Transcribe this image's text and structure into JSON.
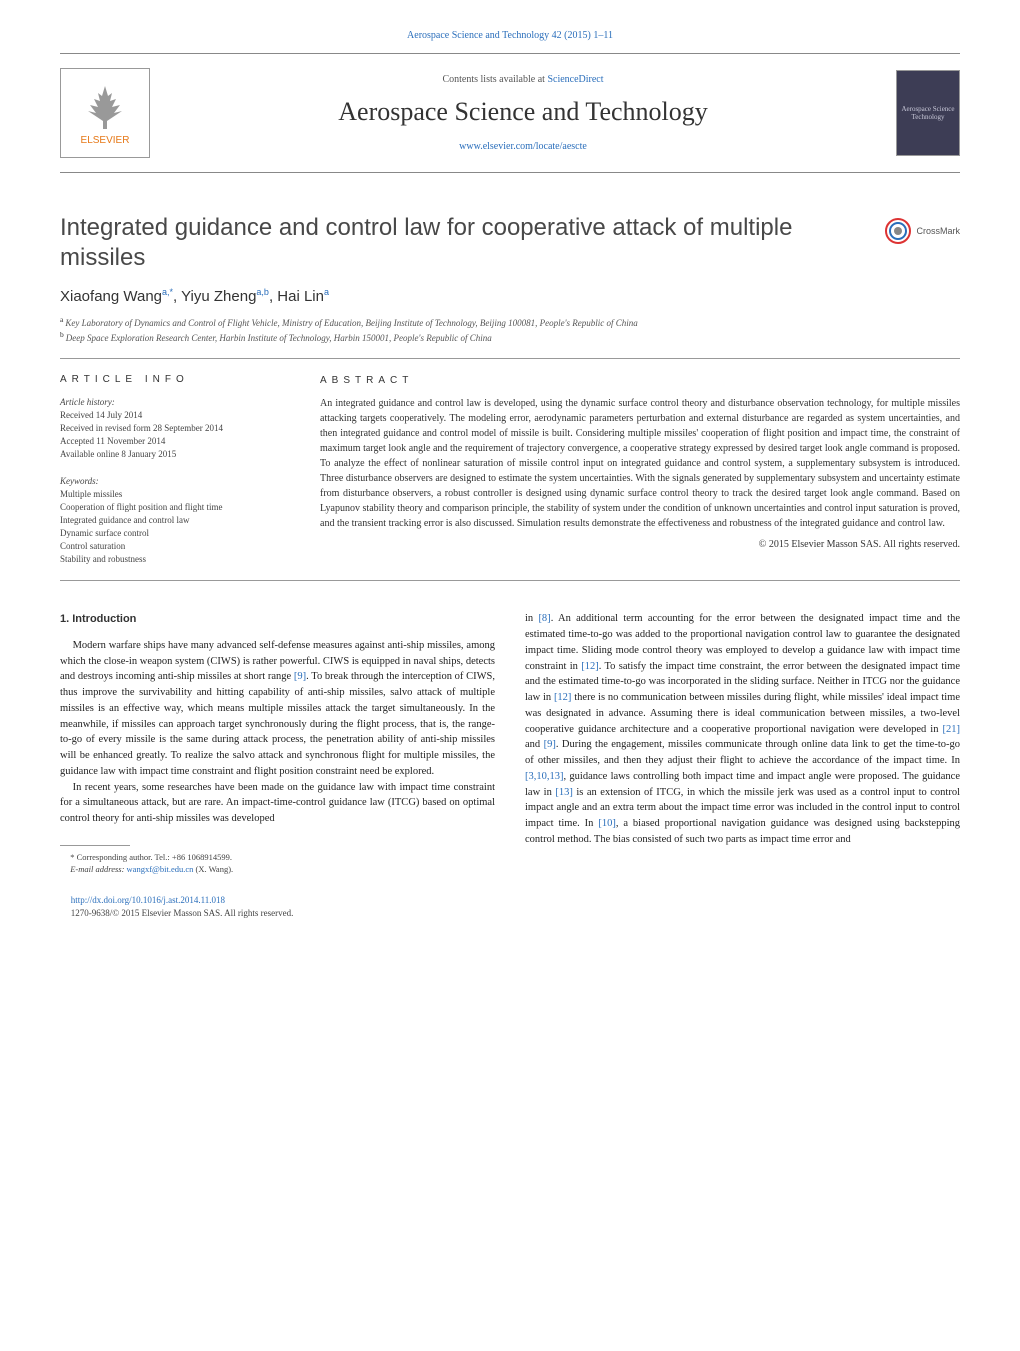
{
  "header": {
    "citation": "Aerospace Science and Technology 42 (2015) 1–11",
    "contents_available": "Contents lists available at ",
    "sciencedirect": "ScienceDirect",
    "journal_title": "Aerospace Science and Technology",
    "journal_url": "www.elsevier.com/locate/aescte",
    "elsevier_brand": "ELSEVIER",
    "cover_text": "Aerospace Science Technology",
    "crossmark": "CrossMark"
  },
  "article": {
    "title": "Integrated guidance and control law for cooperative attack of multiple missiles",
    "authors_html": "Xiaofang Wang",
    "author1": "Xiaofang Wang",
    "author1_sup": "a,*",
    "author2": ", Yiyu Zheng",
    "author2_sup": "a,b",
    "author3": ", Hai Lin",
    "author3_sup": "a",
    "affiliations": {
      "a_sup": "a",
      "a": "Key Laboratory of Dynamics and Control of Flight Vehicle, Ministry of Education, Beijing Institute of Technology, Beijing 100081, People's Republic of China",
      "b_sup": "b",
      "b": "Deep Space Exploration Research Center, Harbin Institute of Technology, Harbin 150001, People's Republic of China"
    }
  },
  "info": {
    "heading": "ARTICLE INFO",
    "history_label": "Article history:",
    "received": "Received 14 July 2014",
    "revised": "Received in revised form 28 September 2014",
    "accepted": "Accepted 11 November 2014",
    "online": "Available online 8 January 2015",
    "keywords_label": "Keywords:",
    "keywords": [
      "Multiple missiles",
      "Cooperation of flight position and flight time",
      "Integrated guidance and control law",
      "Dynamic surface control",
      "Control saturation",
      "Stability and robustness"
    ]
  },
  "abstract": {
    "heading": "ABSTRACT",
    "text": "An integrated guidance and control law is developed, using the dynamic surface control theory and disturbance observation technology, for multiple missiles attacking targets cooperatively. The modeling error, aerodynamic parameters perturbation and external disturbance are regarded as system uncertainties, and then integrated guidance and control model of missile is built. Considering multiple missiles' cooperation of flight position and impact time, the constraint of maximum target look angle and the requirement of trajectory convergence, a cooperative strategy expressed by desired target look angle command is proposed. To analyze the effect of nonlinear saturation of missile control input on integrated guidance and control system, a supplementary subsystem is introduced. Three disturbance observers are designed to estimate the system uncertainties. With the signals generated by supplementary subsystem and uncertainty estimate from disturbance observers, a robust controller is designed using dynamic surface control theory to track the desired target look angle command. Based on Lyapunov stability theory and comparison principle, the stability of system under the condition of unknown uncertainties and control input saturation is proved, and the transient tracking error is also discussed. Simulation results demonstrate the effectiveness and robustness of the integrated guidance and control law.",
    "copyright": "© 2015 Elsevier Masson SAS. All rights reserved."
  },
  "body": {
    "section_heading": "1. Introduction",
    "col1_p1": "Modern warfare ships have many advanced self-defense measures against anti-ship missiles, among which the close-in weapon system (CIWS) is rather powerful. CIWS is equipped in naval ships, detects and destroys incoming anti-ship missiles at short range [9]. To break through the interception of CIWS, thus improve the survivability and hitting capability of anti-ship missiles, salvo attack of multiple missiles is an effective way, which means multiple missiles attack the target simultaneously. In the meanwhile, if missiles can approach target synchronously during the flight process, that is, the range-to-go of every missile is the same during attack process, the penetration ability of anti-ship missiles will be enhanced greatly. To realize the salvo attack and synchronous flight for multiple missiles, the guidance law with impact time constraint and flight position constraint need be explored.",
    "col1_p2": "In recent years, some researches have been made on the guidance law with impact time constraint for a simultaneous attack, but are rare. An impact-time-control guidance law (ITCG) based on optimal control theory for anti-ship missiles was developed",
    "col2_p1": "in [8]. An additional term accounting for the error between the designated impact time and the estimated time-to-go was added to the proportional navigation control law to guarantee the designated impact time. Sliding mode control theory was employed to develop a guidance law with impact time constraint in [12]. To satisfy the impact time constraint, the error between the designated impact time and the estimated time-to-go was incorporated in the sliding surface. Neither in ITCG nor the guidance law in [12] there is no communication between missiles during flight, while missiles' ideal impact time was designated in advance. Assuming there is ideal communication between missiles, a two-level cooperative guidance architecture and a cooperative proportional navigation were developed in [21] and [9]. During the engagement, missiles communicate through online data link to get the time-to-go of other missiles, and then they adjust their flight to achieve the accordance of the impact time. In [3,10,13], guidance laws controlling both impact time and impact angle were proposed. The guidance law in [13] is an extension of ITCG, in which the missile jerk was used as a control input to control impact angle and an extra term about the impact time error was included in the control input to control impact time. In [10], a biased proportional navigation guidance was designed using backstepping control method. The bias consisted of such two parts as impact time error and"
  },
  "footer": {
    "corresponding_label": "* Corresponding author. Tel.: +86 1068914599.",
    "email_label": "E-mail address: ",
    "email": "wangxf@bit.edu.cn",
    "email_owner": " (X. Wang).",
    "doi": "http://dx.doi.org/10.1016/j.ast.2014.11.018",
    "issn": "1270-9638/© 2015 Elsevier Masson SAS. All rights reserved."
  },
  "colors": {
    "link_blue": "#2a6ebb",
    "elsevier_orange": "#e67817",
    "text_gray": "#333333",
    "cover_bg": "#3d3d55"
  }
}
